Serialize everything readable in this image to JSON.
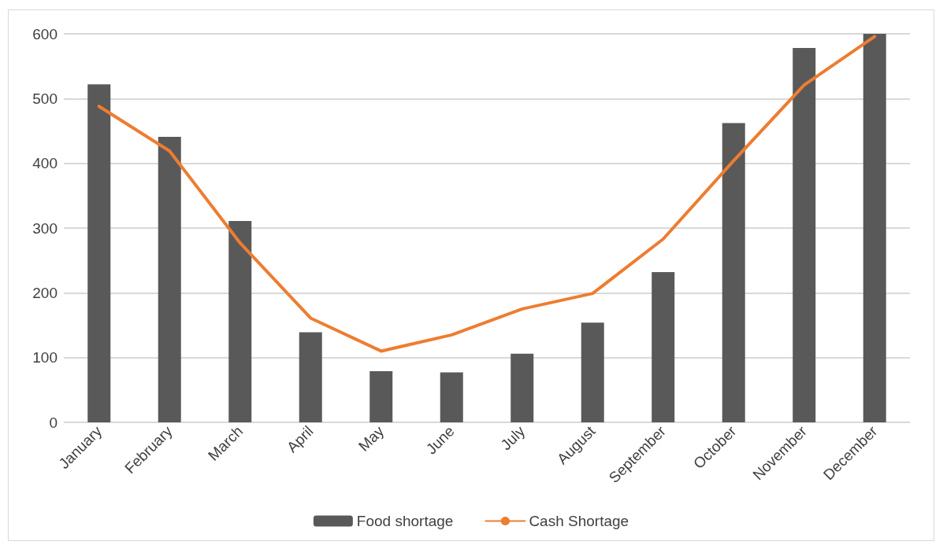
{
  "chart_data": {
    "type": "bar",
    "categories": [
      "January",
      "February",
      "March",
      "April",
      "May",
      "June",
      "July",
      "August",
      "September",
      "October",
      "November",
      "December"
    ],
    "series": [
      {
        "name": "Food shortage",
        "color": "#595959",
        "values": [
          522,
          441,
          311,
          139,
          79,
          77,
          106,
          154,
          232,
          462,
          578,
          600
        ]
      },
      {
        "name": "Cash Shortage",
        "type": "line",
        "color": "#ed7d31",
        "marker": "none",
        "values": [
          488,
          419,
          277,
          161,
          110,
          135,
          175,
          199,
          283,
          404,
          521,
          596
        ]
      }
    ],
    "ylim": [
      0,
      600
    ],
    "yticks": [
      0,
      100,
      200,
      300,
      400,
      500,
      600
    ],
    "grid": "y",
    "legend": "bottom"
  }
}
